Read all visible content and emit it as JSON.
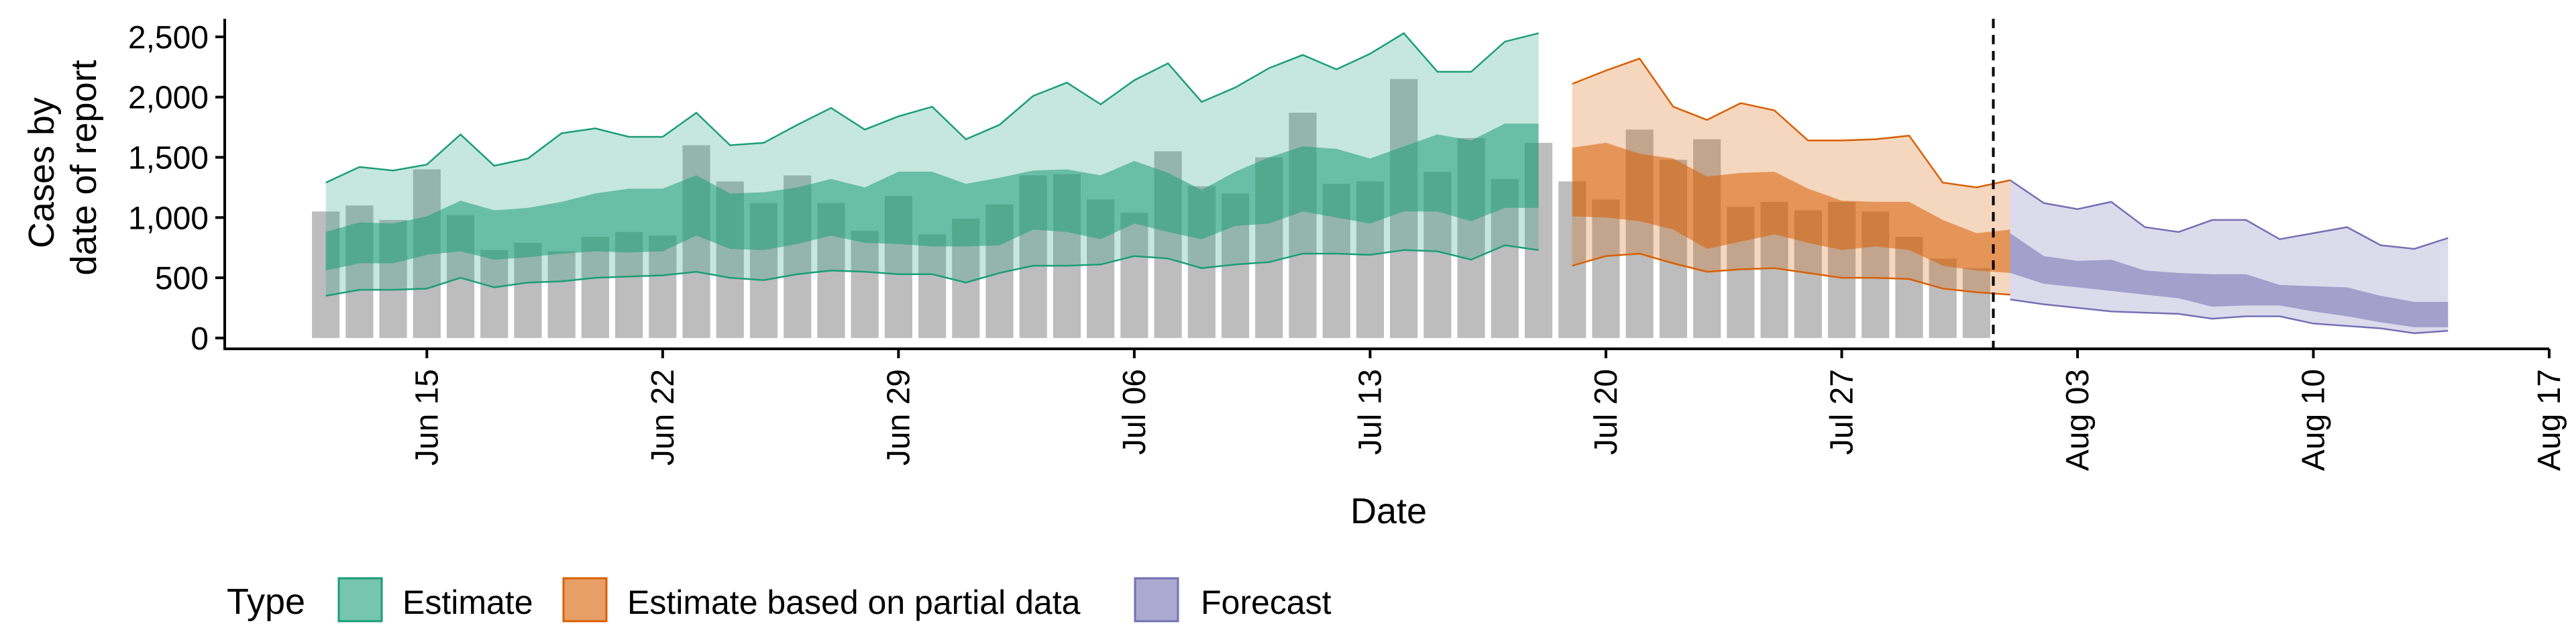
{
  "chart_data": {
    "type": "bar",
    "xlabel": "Date",
    "ylabel_lines": [
      "Cases by",
      "date of report"
    ],
    "ylim": [
      -90,
      2650
    ],
    "yticks": [
      0,
      500,
      1000,
      1500,
      2000,
      2500
    ],
    "ytick_labels": [
      "0",
      "500",
      "1,000",
      "1,500",
      "2,000",
      "2,500"
    ],
    "xticks": [
      "2020-06-15",
      "2020-06-22",
      "2020-06-29",
      "2020-07-06",
      "2020-07-13",
      "2020-07-20",
      "2020-07-27",
      "2020-08-03",
      "2020-08-10",
      "2020-08-17"
    ],
    "xtick_labels": [
      "Jun 15",
      "Jun 22",
      "Jun 29",
      "Jul 06",
      "Jul 13",
      "Jul 20",
      "Jul 27",
      "Aug 03",
      "Aug 10",
      "Aug 17"
    ],
    "x_range": [
      "2020-06-09",
      "2020-08-17"
    ],
    "forecast_start_line": "2020-07-31",
    "bars": {
      "start": "2020-06-12",
      "values": [
        1050,
        1100,
        980,
        1400,
        1020,
        730,
        790,
        720,
        840,
        880,
        850,
        1600,
        1300,
        1120,
        1350,
        1120,
        890,
        1180,
        860,
        990,
        1110,
        1350,
        1360,
        1150,
        1040,
        1550,
        1260,
        1200,
        1500,
        1870,
        1280,
        1300,
        2150,
        1380,
        1660,
        1320,
        1620,
        1300,
        1150,
        1730,
        1480,
        1650,
        1090,
        1130,
        1060,
        1130,
        1050,
        840,
        660,
        580
      ]
    },
    "series": [
      {
        "name": "Estimate",
        "color": "#1b9e77",
        "start": "2020-06-12",
        "lo90": [
          350,
          400,
          400,
          410,
          500,
          420,
          460,
          470,
          500,
          510,
          520,
          550,
          500,
          480,
          530,
          560,
          550,
          530,
          530,
          460,
          540,
          600,
          600,
          610,
          680,
          660,
          580,
          610,
          630,
          700,
          700,
          690,
          730,
          720,
          650,
          770,
          730
        ],
        "lo50": [
          560,
          620,
          620,
          690,
          720,
          650,
          670,
          700,
          720,
          710,
          720,
          850,
          740,
          730,
          780,
          850,
          790,
          780,
          760,
          760,
          770,
          900,
          880,
          820,
          950,
          880,
          820,
          930,
          950,
          1050,
          1000,
          950,
          1050,
          1050,
          970,
          1080,
          1080
        ],
        "hi50": [
          880,
          960,
          950,
          1010,
          1140,
          1060,
          1080,
          1130,
          1200,
          1240,
          1240,
          1350,
          1200,
          1210,
          1250,
          1320,
          1250,
          1380,
          1380,
          1280,
          1330,
          1390,
          1400,
          1350,
          1470,
          1370,
          1230,
          1380,
          1500,
          1590,
          1570,
          1490,
          1590,
          1690,
          1640,
          1780,
          1780
        ],
        "hi90": [
          1290,
          1420,
          1390,
          1440,
          1690,
          1430,
          1490,
          1700,
          1740,
          1670,
          1670,
          1870,
          1600,
          1620,
          1770,
          1910,
          1730,
          1840,
          1920,
          1650,
          1770,
          2010,
          2120,
          1940,
          2140,
          2280,
          1960,
          2080,
          2240,
          2350,
          2230,
          2360,
          2530,
          2210,
          2210,
          2460,
          2530
        ]
      },
      {
        "name": "Estimate based on partial data",
        "color": "#d95f02",
        "start": "2020-07-19",
        "lo90": [
          600,
          680,
          700,
          620,
          550,
          570,
          580,
          540,
          500,
          500,
          490,
          410,
          380,
          360
        ],
        "lo50": [
          1010,
          1000,
          970,
          900,
          740,
          800,
          860,
          790,
          730,
          760,
          730,
          600,
          560,
          540
        ],
        "hi50": [
          1580,
          1620,
          1530,
          1490,
          1340,
          1370,
          1380,
          1240,
          1140,
          1130,
          1130,
          980,
          870,
          900
        ],
        "hi90": [
          2110,
          2220,
          2320,
          1920,
          1810,
          1950,
          1890,
          1640,
          1640,
          1650,
          1680,
          1290,
          1250,
          1310
        ]
      },
      {
        "name": "Forecast",
        "color": "#7570b3",
        "start": "2020-08-01",
        "lo90": [
          320,
          280,
          250,
          220,
          210,
          200,
          160,
          180,
          180,
          120,
          100,
          80,
          40,
          60
        ],
        "lo50": [
          540,
          450,
          420,
          390,
          360,
          330,
          260,
          270,
          270,
          220,
          180,
          130,
          90,
          90
        ],
        "hi50": [
          870,
          680,
          640,
          650,
          560,
          540,
          530,
          530,
          440,
          430,
          420,
          350,
          300,
          300
        ],
        "hi90": [
          1310,
          1120,
          1070,
          1130,
          920,
          880,
          980,
          980,
          820,
          870,
          920,
          770,
          740,
          830
        ]
      }
    ],
    "legend": {
      "title": "Type",
      "position": "bottom",
      "items": [
        "Estimate",
        "Estimate based on partial data",
        "Forecast"
      ]
    }
  }
}
